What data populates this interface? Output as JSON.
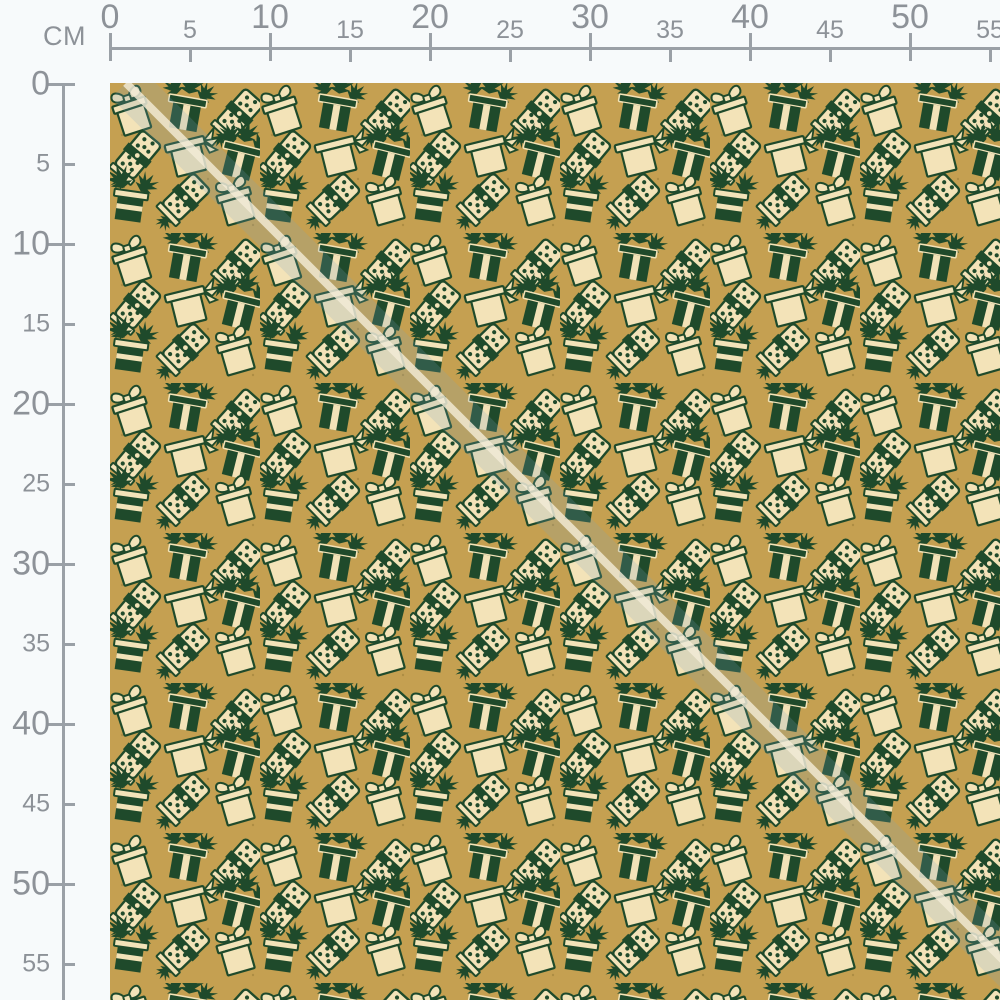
{
  "ruler": {
    "unit_label": "CM",
    "horizontal_labels": [
      "0",
      "5",
      "10",
      "15",
      "20",
      "25",
      "30",
      "35",
      "40",
      "45",
      "50",
      "55"
    ],
    "vertical_labels": [
      "0",
      "5",
      "10",
      "15",
      "20",
      "25",
      "30",
      "35",
      "40",
      "45",
      "50",
      "55"
    ]
  },
  "colors": {
    "page_background": "#f7fafb",
    "ruler_line": "#9aa0a6",
    "ruler_text": "#8d9298",
    "fabric_gold": "#c5a051",
    "gift_green": "#1f4a2b",
    "gift_cream": "#f3e3b8",
    "seam_highlight": "#f3ecd7",
    "seam_shadow": "#7fa4c3"
  },
  "fabric": {
    "pattern_icon": "gift-boxes-pattern"
  }
}
